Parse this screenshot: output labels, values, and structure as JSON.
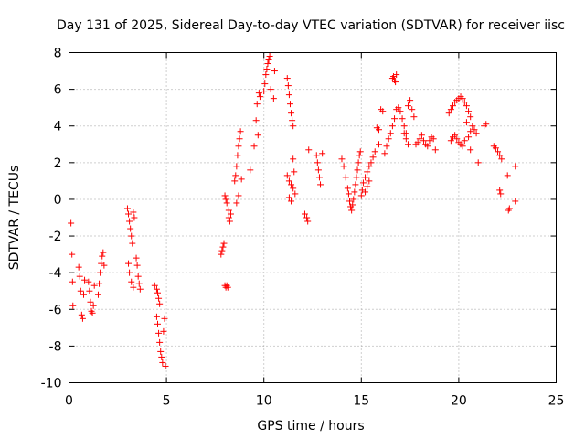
{
  "chart_data": {
    "type": "scatter",
    "title": "Day 131 of 2025, Sidereal Day-to-day VTEC variation (SDTVAR) for receiver iisc",
    "xlabel": "GPS time / hours",
    "ylabel": "SDTVAR / TECUs",
    "xlim": [
      0,
      25
    ],
    "ylim": [
      -10,
      8
    ],
    "xticks": [
      0,
      5,
      10,
      15,
      20,
      25
    ],
    "yticks": [
      -10,
      -8,
      -6,
      -4,
      -2,
      0,
      2,
      4,
      6,
      8
    ],
    "grid": true,
    "marker": "plus",
    "color": "#ff0000",
    "series": [
      {
        "name": "SDTVAR",
        "x": [
          0.1,
          0.15,
          0.18,
          0.2,
          0.5,
          0.55,
          0.6,
          0.65,
          0.7,
          0.75,
          0.8,
          1.0,
          1.05,
          1.1,
          1.15,
          1.2,
          1.25,
          1.3,
          1.5,
          1.55,
          1.6,
          1.65,
          1.7,
          1.75,
          1.8,
          3.0,
          3.05,
          3.1,
          3.15,
          3.2,
          3.25,
          3.3,
          3.35,
          3.05,
          3.1,
          3.2,
          3.3,
          3.45,
          3.5,
          3.55,
          3.6,
          3.65,
          4.4,
          4.5,
          4.55,
          4.6,
          4.65,
          4.5,
          4.55,
          4.6,
          4.65,
          4.7,
          4.75,
          4.8,
          4.85,
          4.9,
          4.95,
          7.8,
          7.85,
          7.9,
          7.95,
          8.0,
          8.05,
          8.1,
          8.0,
          8.05,
          8.1,
          8.15,
          8.2,
          8.25,
          8.2,
          8.3,
          8.5,
          8.55,
          8.6,
          8.65,
          8.7,
          8.75,
          8.8,
          8.85,
          8.6,
          8.7,
          9.3,
          9.5,
          9.6,
          9.7,
          9.75,
          9.8,
          9.65,
          10.0,
          10.05,
          10.1,
          10.15,
          10.2,
          10.25,
          10.3,
          10.35,
          10.5,
          10.55,
          11.2,
          11.25,
          11.3,
          11.35,
          11.4,
          11.45,
          11.5,
          11.55,
          11.2,
          11.3,
          11.4,
          11.5,
          11.6,
          11.3,
          11.4,
          11.5,
          12.1,
          12.2,
          12.25,
          12.3,
          12.7,
          12.75,
          12.8,
          12.85,
          12.9,
          13.0,
          14.0,
          14.1,
          14.2,
          14.3,
          14.35,
          14.4,
          14.45,
          14.5,
          14.55,
          14.6,
          14.65,
          14.7,
          14.75,
          14.8,
          14.85,
          14.9,
          14.95,
          15.0,
          15.05,
          15.1,
          15.2,
          15.3,
          15.4,
          15.5,
          15.6,
          15.2,
          15.3,
          15.4,
          15.7,
          15.8,
          15.9,
          16.0,
          16.1,
          15.9,
          16.2,
          16.3,
          16.4,
          16.5,
          16.6,
          16.7,
          16.8,
          16.6,
          16.65,
          16.7,
          16.75,
          16.8,
          16.9,
          17.0,
          17.1,
          17.2,
          17.3,
          17.4,
          17.5,
          17.6,
          17.7,
          17.2,
          17.3,
          17.4,
          17.8,
          17.9,
          18.0,
          18.1,
          18.2,
          18.3,
          18.4,
          18.5,
          18.6,
          18.7,
          18.8,
          19.5,
          19.6,
          19.7,
          19.8,
          19.9,
          20.0,
          20.1,
          20.2,
          20.3,
          20.4,
          20.5,
          20.6,
          19.6,
          19.7,
          19.8,
          19.9,
          20.0,
          20.1,
          20.2,
          20.3,
          20.5,
          20.6,
          20.7,
          20.8,
          20.9,
          20.4,
          20.6,
          21.0,
          21.3,
          21.4,
          21.8,
          21.9,
          22.0,
          22.1,
          22.2,
          22.1,
          22.15,
          22.5,
          22.6,
          22.55,
          22.9,
          22.9
        ],
        "y": [
          -1.3,
          -3.0,
          -4.5,
          -5.8,
          -3.7,
          -4.2,
          -5.0,
          -6.3,
          -6.5,
          -5.2,
          -4.4,
          -4.5,
          -5.0,
          -5.6,
          -6.1,
          -6.2,
          -5.8,
          -4.7,
          -5.2,
          -4.6,
          -4.0,
          -3.5,
          -3.1,
          -2.9,
          -3.6,
          -0.5,
          -0.8,
          -1.2,
          -1.6,
          -2.0,
          -2.4,
          -0.7,
          -1.0,
          -3.5,
          -4.0,
          -4.5,
          -4.8,
          -3.2,
          -3.6,
          -4.2,
          -4.6,
          -4.9,
          -4.7,
          -4.9,
          -5.1,
          -5.4,
          -5.7,
          -6.4,
          -6.8,
          -7.3,
          -7.8,
          -8.3,
          -8.6,
          -8.9,
          -7.2,
          -6.5,
          -9.1,
          -3.0,
          -2.8,
          -2.6,
          -2.4,
          0.2,
          0.0,
          -0.2,
          -4.7,
          -4.8,
          -4.7,
          -4.8,
          -1.0,
          -1.2,
          -0.6,
          -0.8,
          1.0,
          1.3,
          1.8,
          2.4,
          2.9,
          3.3,
          3.7,
          1.1,
          -0.2,
          0.2,
          1.6,
          2.9,
          4.3,
          3.5,
          5.8,
          5.6,
          5.2,
          5.9,
          6.3,
          6.8,
          7.1,
          7.4,
          7.6,
          7.8,
          6.0,
          5.5,
          7.0,
          6.6,
          6.2,
          5.7,
          5.2,
          4.7,
          4.3,
          4.0,
          1.5,
          1.3,
          1.0,
          0.8,
          0.6,
          0.3,
          0.1,
          -0.1,
          2.2,
          -0.8,
          -1.0,
          -1.2,
          2.7,
          2.4,
          2.0,
          1.6,
          1.2,
          0.8,
          2.5,
          2.2,
          1.8,
          1.2,
          0.6,
          0.3,
          -0.1,
          -0.4,
          -0.6,
          -0.3,
          0.0,
          0.4,
          0.8,
          1.2,
          1.6,
          2.0,
          2.4,
          2.6,
          0.2,
          0.5,
          0.9,
          1.2,
          1.5,
          1.8,
          2.0,
          2.3,
          0.4,
          0.7,
          1.0,
          2.6,
          3.9,
          3.8,
          4.9,
          4.8,
          3.0,
          2.5,
          2.9,
          3.3,
          3.6,
          4.0,
          4.4,
          4.9,
          6.6,
          6.7,
          6.5,
          6.4,
          6.8,
          5.0,
          4.8,
          4.4,
          4.0,
          3.6,
          5.1,
          5.4,
          4.9,
          4.5,
          3.6,
          3.3,
          3.0,
          3.0,
          3.1,
          3.3,
          3.5,
          3.2,
          3.0,
          2.9,
          3.2,
          3.4,
          3.3,
          2.7,
          4.7,
          4.9,
          5.1,
          5.3,
          5.4,
          5.5,
          5.6,
          5.5,
          5.3,
          5.1,
          4.8,
          4.5,
          3.2,
          3.4,
          3.5,
          3.3,
          3.1,
          3.0,
          2.9,
          3.2,
          3.4,
          3.7,
          4.0,
          3.8,
          3.6,
          4.2,
          2.7,
          2.0,
          4.0,
          4.1,
          2.9,
          2.8,
          2.6,
          2.4,
          2.2,
          0.5,
          0.3,
          1.3,
          -0.5,
          -0.6,
          1.8,
          -0.1
        ]
      }
    ]
  }
}
